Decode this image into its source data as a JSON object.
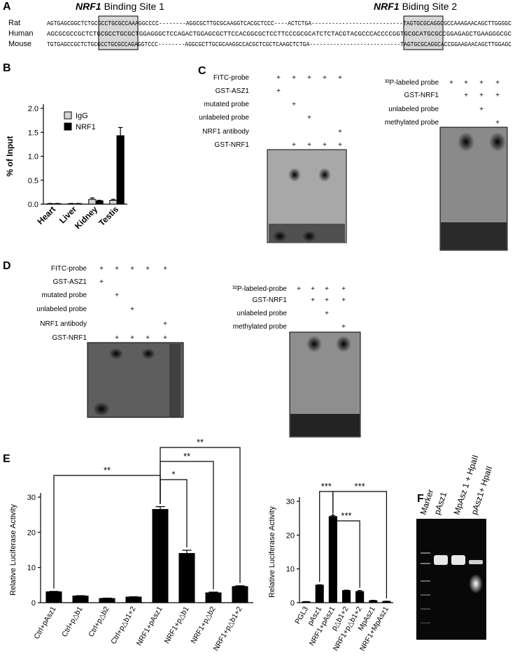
{
  "panel_labels": [
    "A",
    "B",
    "C",
    "D",
    "E",
    "F"
  ],
  "panel_a": {
    "site1": {
      "gene": "NRF1",
      "label": "Binding Site 1"
    },
    "site2": {
      "gene": "NRF1",
      "label": "Biding Site 2"
    },
    "rows": [
      {
        "species": "Rat",
        "sequence": "AGTGAGCGGCTCTGCGCCTGCGCCAAAGGCCCC--------AGGCGCTTGCGCAAGGTCACGCTCCC----ACTCTGA---------------------------TAGTGCGCAGGCGCCAAAGAACAGCTTGGGGC"
      },
      {
        "species": "Human",
        "sequence": "AGCGCGCCGCTCTGCGCCTGCGCTGGAGGGCTCCAGACTGGAGCGCTTCCACGGCGCTCCTTCCCGCGCATCTCTACGTACGCCCACCCCGGTGCGCATGCGCCGGAGAGCTGAAGGGCGC"
      },
      {
        "species": "Mouse",
        "sequence": "TGTGAGCCGCTCTGCGCCTGCGCCAGAGGTCCC--------AGGCGCTTGCGCAAGGCCACGCTCGCTCAAGCTCTGA---------------------------TAGTGCGCAGGCACCGGAAGAACAGCTTGGAGC"
      }
    ]
  },
  "chart_data": [
    {
      "type": "bar",
      "y_label": "% of Input",
      "categories": [
        "Heart",
        "Liver",
        "Kidney",
        "Testis"
      ],
      "series": [
        {
          "name": "IgG",
          "color": "#d4d4d4",
          "values": [
            0.01,
            0.01,
            0.1,
            0.08
          ],
          "errors": [
            0.005,
            0.005,
            0.03,
            0.02
          ]
        },
        {
          "name": "NRF1",
          "color": "#000000",
          "values": [
            0.01,
            0.01,
            0.07,
            1.43
          ],
          "errors": [
            0.005,
            0.005,
            0.01,
            0.17
          ]
        }
      ],
      "ylim": [
        0,
        2
      ],
      "yticks": [
        {
          "value": 0,
          "label": "0.0"
        },
        0.5,
        {
          "value": 1,
          "label": "1.0"
        },
        1.5,
        {
          "value": 2,
          "label": "2.0"
        }
      ],
      "legend": "upper left"
    },
    {
      "type": "bar",
      "y_label": "Relative Luciferase Activity",
      "categories": [
        "Ctrl+pAsz1",
        "Ctrl+p△b1",
        "Ctrl+p△b2",
        "Ctrl+p△b1+2",
        "NRF1+pAsz1",
        "NRF1+p△b1",
        "NRF1+p△b2",
        "NRF1+p△b1+2"
      ],
      "values": [
        3.1,
        1.9,
        1.2,
        1.6,
        26.5,
        14,
        2.8,
        4.6
      ],
      "errors": [
        0.1,
        0.1,
        0.1,
        0.1,
        0.8,
        0.9,
        0.2,
        0.2
      ],
      "color": "#000000",
      "ylim": [
        0,
        30
      ],
      "yticks": [
        0,
        10,
        20,
        30
      ],
      "annotations": [
        {
          "text": "**",
          "from": "Ctrl+pAsz1",
          "to": "NRF1+pAsz1"
        },
        {
          "text": "*",
          "from": "NRF1+pAsz1",
          "to": "NRF1+p△b1"
        },
        {
          "text": "**",
          "from": "NRF1+pAsz1",
          "to": "NRF1+p△b2"
        },
        {
          "text": "**",
          "from": "NRF1+pAsz1",
          "to": "NRF1+p△b1+2"
        }
      ]
    },
    {
      "type": "bar",
      "y_label": "Relative Luciferase Activity",
      "categories": [
        "PGL3",
        "pAsz1",
        "NRF1+pAsz1",
        "p△b1+2",
        "NRF1+p△b1+2",
        "MpAsz1",
        "NRF1+MpAsz1"
      ],
      "values": [
        0.3,
        5.2,
        25.5,
        3.6,
        3.3,
        0.6,
        0.4
      ],
      "errors": [
        0.05,
        0.1,
        0.3,
        0.1,
        0.3,
        0.1,
        0.05
      ],
      "color": "#000000",
      "ylim": [
        0,
        30
      ],
      "yticks": [
        0,
        10,
        20,
        30
      ],
      "annotations": [
        {
          "text": "***",
          "from": "pAsz1",
          "to": "NRF1+pAsz1"
        },
        {
          "text": "***",
          "from": "NRF1+pAsz1",
          "to": "NRF1+MpAsz1"
        },
        {
          "text": "***",
          "from": "NRF1+pAsz1",
          "to": "NRF1+p△b1+2"
        }
      ]
    }
  ],
  "panel_c": {
    "fitc": {
      "rows": [
        {
          "label": "FITC-probe",
          "lanes": [
            "+",
            "+",
            "+",
            "+",
            "+"
          ]
        },
        {
          "label": "GST-ASZ1",
          "lanes": [
            "+",
            null,
            null,
            null,
            null
          ]
        },
        {
          "label": "mutated probe",
          "lanes": [
            null,
            "+",
            null,
            null,
            null
          ]
        },
        {
          "label": "unlabeled probe",
          "lanes": [
            null,
            null,
            "+",
            null,
            null
          ]
        },
        {
          "label": "NRF1 antibody",
          "lanes": [
            null,
            null,
            null,
            null,
            "+"
          ]
        },
        {
          "label": "GST-NRF1",
          "lanes": [
            null,
            "+",
            "+",
            "+",
            "+"
          ]
        }
      ]
    },
    "p32": {
      "rows": [
        {
          "label": "³²P-labeled probe",
          "lanes": [
            "+",
            "+",
            "+",
            "+"
          ]
        },
        {
          "label": "GST-NRF1",
          "lanes": [
            null,
            "+",
            "+",
            "+"
          ]
        },
        {
          "label": "unlabeled  probe",
          "lanes": [
            null,
            null,
            "+",
            null
          ]
        },
        {
          "label": "methylated  probe",
          "lanes": [
            null,
            null,
            null,
            "+"
          ]
        }
      ]
    }
  },
  "panel_d": {
    "fitc": {
      "rows": [
        {
          "label": "FITC-probe",
          "lanes": [
            "+",
            "+",
            "+",
            "+",
            "+"
          ]
        },
        {
          "label": "GST-ASZ1",
          "lanes": [
            "+",
            null,
            null,
            null,
            null
          ]
        },
        {
          "label": "mutated probe",
          "lanes": [
            null,
            "+",
            null,
            null,
            null
          ]
        },
        {
          "label": "unlabeled probe",
          "lanes": [
            null,
            null,
            "+",
            null,
            null
          ]
        },
        {
          "label": "NRF1 antibody",
          "lanes": [
            null,
            null,
            null,
            null,
            "+"
          ]
        },
        {
          "label": "GST-NRF1",
          "lanes": [
            null,
            "+",
            "+",
            "+",
            "+"
          ]
        }
      ]
    },
    "p32": {
      "rows": [
        {
          "label": "³²P-labeled-probe",
          "lanes": [
            "+",
            "+",
            "+",
            "+"
          ]
        },
        {
          "label": "GST-NRF1",
          "lanes": [
            null,
            "+",
            "+",
            "+"
          ]
        },
        {
          "label": "unlabeled  probe",
          "lanes": [
            null,
            null,
            "+",
            null
          ]
        },
        {
          "label": "methylated  probe",
          "lanes": [
            null,
            null,
            null,
            "+"
          ]
        }
      ]
    }
  },
  "panel_f": {
    "lanes": [
      "Marker",
      "pAsz1",
      "MpAsz 1 + HpaII",
      "pAsz1+ HpaII"
    ]
  }
}
